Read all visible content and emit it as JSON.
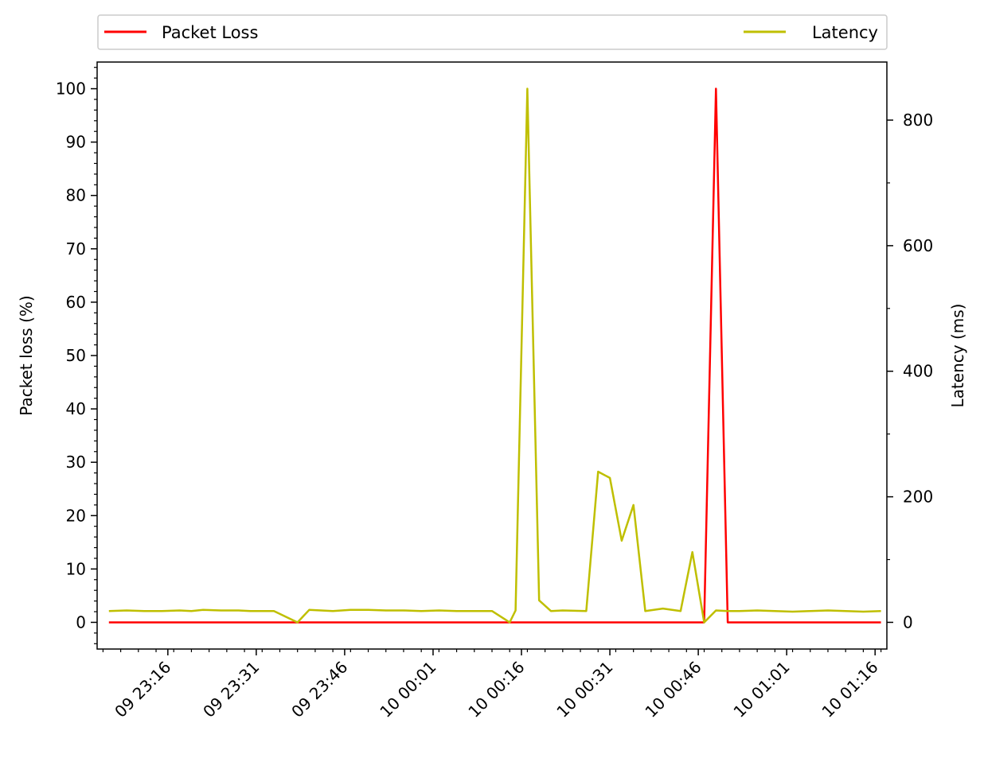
{
  "chart_data": {
    "type": "line",
    "x": [
      "09 23:06",
      "09 23:09",
      "09 23:12",
      "09 23:15",
      "09 23:18",
      "09 23:20",
      "09 23:22",
      "09 23:25",
      "09 23:28",
      "09 23:30",
      "09 23:34",
      "09 23:38",
      "09 23:40",
      "09 23:44",
      "09 23:47",
      "09 23:50",
      "09 23:53",
      "09 23:56",
      "09 23:59",
      "10 00:02",
      "10 00:05",
      "10 00:08",
      "10 00:11",
      "10 00:14",
      "10 00:15",
      "10 00:17",
      "10 00:19",
      "10 00:21",
      "10 00:23",
      "10 00:27",
      "10 00:29",
      "10 00:31",
      "10 00:33",
      "10 00:35",
      "10 00:37",
      "10 00:40",
      "10 00:43",
      "10 00:45",
      "10 00:47",
      "10 00:49",
      "10 00:51",
      "10 00:53",
      "10 00:56",
      "10 00:59",
      "10 01:02",
      "10 01:05",
      "10 01:08",
      "10 01:11",
      "10 01:14",
      "10 01:17"
    ],
    "series": [
      {
        "name": "Packet Loss",
        "axis": "left",
        "color": "#ff0000",
        "values": [
          0,
          0,
          0,
          0,
          0,
          0,
          0,
          0,
          0,
          0,
          0,
          0,
          0,
          0,
          0,
          0,
          0,
          0,
          0,
          0,
          0,
          0,
          0,
          0,
          0,
          0,
          0,
          0,
          0,
          0,
          0,
          0,
          0,
          0,
          0,
          0,
          0,
          0,
          0,
          100,
          0,
          0,
          0,
          0,
          0,
          0,
          0,
          0,
          0,
          0
        ]
      },
      {
        "name": "Latency",
        "axis": "right",
        "color": "#bfbf00",
        "values": [
          18,
          19,
          18,
          18,
          19,
          18,
          20,
          19,
          19,
          18,
          18,
          0,
          20,
          18,
          20,
          20,
          19,
          19,
          18,
          19,
          18,
          18,
          18,
          0,
          19,
          850,
          35,
          18,
          19,
          18,
          240,
          230,
          130,
          187,
          18,
          22,
          18,
          112,
          0,
          19,
          18,
          18,
          19,
          18,
          17,
          18,
          19,
          18,
          17,
          18
        ]
      }
    ],
    "left_axis": {
      "label": "Packet loss (%)",
      "ylim": [
        -5,
        105
      ],
      "ticks": [
        0,
        10,
        20,
        30,
        40,
        50,
        60,
        70,
        80,
        90,
        100
      ],
      "minor_step": 2
    },
    "right_axis": {
      "label": "Latency (ms)",
      "ylim": [
        -42.5,
        892.5
      ],
      "ticks": [
        0,
        200,
        400,
        600,
        800
      ],
      "minor_step": 100
    },
    "x_axis": {
      "xlim": [
        "09 23:04",
        "10 01:18"
      ],
      "tick_labels": [
        "09 23:16",
        "09 23:31",
        "09 23:46",
        "10 00:01",
        "10 00:16",
        "10 00:31",
        "10 00:46",
        "10 01:01",
        "10 01:16"
      ],
      "minor_step_minutes": 3
    },
    "legend": {
      "placement": "top"
    },
    "grid": false
  }
}
